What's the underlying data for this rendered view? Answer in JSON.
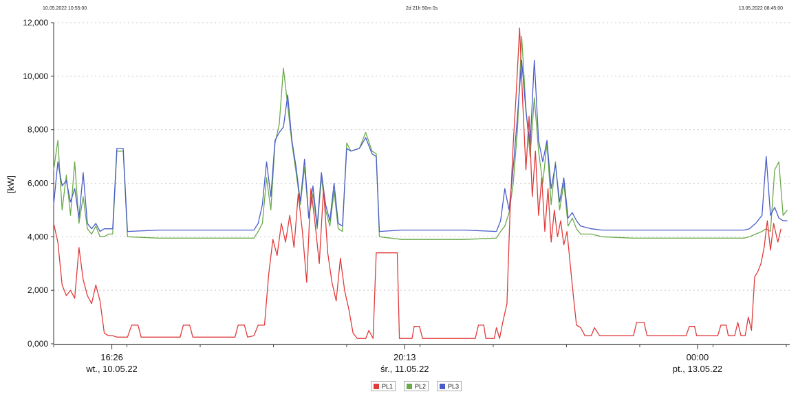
{
  "header": {
    "start_time": "10.05.2022 10:55:00",
    "duration": "2d 21h 50m 0s",
    "end_time": "13.05.2022 08:45:00"
  },
  "chart_data": {
    "type": "line",
    "ylabel": "[kW]",
    "ylim": [
      0,
      12000
    ],
    "y_ticks": [
      "0,000",
      "2,000",
      "4,000",
      "6,000",
      "8,000",
      "10,000",
      "12,000"
    ],
    "x_ticks": [
      {
        "time": "16:26",
        "date": "wt., 10.05.22"
      },
      {
        "time": "20:13",
        "date": "śr., 11.05.22"
      },
      {
        "time": "00:00",
        "date": "pt., 13.05.22"
      }
    ],
    "x_tick_hours": [
      5.52,
      33.3,
      61.08
    ],
    "xlim_hours": [
      0,
      69.83
    ],
    "grid": true,
    "legend_position": "bottom",
    "series": [
      {
        "name": "PL1",
        "color": "#e03a3a",
        "points": [
          [
            0,
            4500
          ],
          [
            0.4,
            3800
          ],
          [
            0.8,
            2200
          ],
          [
            1.2,
            1800
          ],
          [
            1.6,
            2000
          ],
          [
            2.0,
            1700
          ],
          [
            2.4,
            3600
          ],
          [
            2.8,
            2400
          ],
          [
            3.2,
            1800
          ],
          [
            3.6,
            1500
          ],
          [
            4.0,
            2200
          ],
          [
            4.4,
            1600
          ],
          [
            4.8,
            400
          ],
          [
            5.2,
            300
          ],
          [
            5.6,
            300
          ],
          [
            6.0,
            250
          ],
          [
            7.0,
            250
          ],
          [
            7.4,
            700
          ],
          [
            8.0,
            700
          ],
          [
            8.3,
            250
          ],
          [
            12.0,
            250
          ],
          [
            12.3,
            700
          ],
          [
            12.9,
            700
          ],
          [
            13.2,
            250
          ],
          [
            17.2,
            250
          ],
          [
            17.5,
            700
          ],
          [
            18.1,
            700
          ],
          [
            18.4,
            250
          ],
          [
            19.0,
            300
          ],
          [
            19.4,
            700
          ],
          [
            20.0,
            700
          ],
          [
            20.4,
            2600
          ],
          [
            20.8,
            3900
          ],
          [
            21.2,
            3300
          ],
          [
            21.6,
            4500
          ],
          [
            22.0,
            3800
          ],
          [
            22.4,
            4800
          ],
          [
            22.8,
            3600
          ],
          [
            23.2,
            5600
          ],
          [
            23.6,
            4200
          ],
          [
            24.0,
            2300
          ],
          [
            24.4,
            5800
          ],
          [
            24.8,
            4500
          ],
          [
            25.2,
            3000
          ],
          [
            25.6,
            5800
          ],
          [
            26.0,
            3400
          ],
          [
            26.4,
            2300
          ],
          [
            26.8,
            1600
          ],
          [
            27.2,
            3200
          ],
          [
            27.6,
            2000
          ],
          [
            28.0,
            1300
          ],
          [
            28.4,
            400
          ],
          [
            28.8,
            200
          ],
          [
            29.6,
            200
          ],
          [
            29.9,
            500
          ],
          [
            30.3,
            200
          ],
          [
            30.6,
            3400
          ],
          [
            32.6,
            3400
          ],
          [
            32.8,
            200
          ],
          [
            34.0,
            200
          ],
          [
            34.2,
            650
          ],
          [
            34.7,
            650
          ],
          [
            35.0,
            200
          ],
          [
            40.0,
            200
          ],
          [
            40.3,
            700
          ],
          [
            40.8,
            700
          ],
          [
            41.0,
            200
          ],
          [
            41.8,
            200
          ],
          [
            42.0,
            600
          ],
          [
            42.3,
            200
          ],
          [
            42.6,
            800
          ],
          [
            43.0,
            1500
          ],
          [
            43.3,
            5000
          ],
          [
            43.6,
            7500
          ],
          [
            43.9,
            9500
          ],
          [
            44.2,
            11800
          ],
          [
            44.5,
            9000
          ],
          [
            44.8,
            6500
          ],
          [
            45.1,
            8500
          ],
          [
            45.4,
            5500
          ],
          [
            45.7,
            7200
          ],
          [
            46.0,
            4800
          ],
          [
            46.3,
            6200
          ],
          [
            46.6,
            4200
          ],
          [
            46.9,
            5800
          ],
          [
            47.2,
            3800
          ],
          [
            47.5,
            5000
          ],
          [
            47.8,
            4000
          ],
          [
            48.1,
            4600
          ],
          [
            48.4,
            3700
          ],
          [
            48.7,
            4200
          ],
          [
            49.0,
            3000
          ],
          [
            49.3,
            1800
          ],
          [
            49.6,
            700
          ],
          [
            50.0,
            600
          ],
          [
            50.4,
            300
          ],
          [
            51.0,
            300
          ],
          [
            51.3,
            600
          ],
          [
            51.8,
            300
          ],
          [
            52.5,
            300
          ],
          [
            55.0,
            300
          ],
          [
            55.3,
            800
          ],
          [
            56.0,
            800
          ],
          [
            56.3,
            300
          ],
          [
            60.0,
            300
          ],
          [
            60.3,
            650
          ],
          [
            60.8,
            650
          ],
          [
            61.0,
            300
          ],
          [
            63.0,
            300
          ],
          [
            63.3,
            700
          ],
          [
            63.8,
            700
          ],
          [
            64.0,
            300
          ],
          [
            64.6,
            300
          ],
          [
            64.9,
            800
          ],
          [
            65.2,
            300
          ],
          [
            65.6,
            300
          ],
          [
            65.9,
            1000
          ],
          [
            66.2,
            500
          ],
          [
            66.5,
            2500
          ],
          [
            66.8,
            2700
          ],
          [
            67.1,
            3000
          ],
          [
            67.4,
            3600
          ],
          [
            67.7,
            4600
          ],
          [
            68.0,
            3500
          ],
          [
            68.3,
            4500
          ],
          [
            68.7,
            3800
          ],
          [
            69.0,
            4300
          ]
        ]
      },
      {
        "name": "PL2",
        "color": "#6aaa4a",
        "points": [
          [
            0,
            6500
          ],
          [
            0.4,
            7600
          ],
          [
            0.8,
            5000
          ],
          [
            1.2,
            6300
          ],
          [
            1.6,
            4800
          ],
          [
            2.0,
            6800
          ],
          [
            2.4,
            4500
          ],
          [
            2.8,
            5500
          ],
          [
            3.2,
            4300
          ],
          [
            3.6,
            4100
          ],
          [
            4.0,
            4400
          ],
          [
            4.4,
            4000
          ],
          [
            4.8,
            4000
          ],
          [
            5.2,
            4100
          ],
          [
            5.6,
            4100
          ],
          [
            6.0,
            7200
          ],
          [
            6.6,
            7200
          ],
          [
            7.0,
            4000
          ],
          [
            10.0,
            3950
          ],
          [
            13.0,
            3950
          ],
          [
            16.0,
            3950
          ],
          [
            19.0,
            3950
          ],
          [
            19.4,
            4200
          ],
          [
            19.8,
            4500
          ],
          [
            20.2,
            6200
          ],
          [
            20.6,
            5000
          ],
          [
            21.0,
            7500
          ],
          [
            21.4,
            8200
          ],
          [
            21.8,
            10300
          ],
          [
            22.2,
            8900
          ],
          [
            22.6,
            7500
          ],
          [
            23.0,
            6400
          ],
          [
            23.4,
            5200
          ],
          [
            23.8,
            6600
          ],
          [
            24.2,
            4700
          ],
          [
            24.6,
            5600
          ],
          [
            25.0,
            4300
          ],
          [
            25.4,
            6200
          ],
          [
            25.8,
            5000
          ],
          [
            26.2,
            4400
          ],
          [
            26.6,
            5700
          ],
          [
            27.0,
            4300
          ],
          [
            27.4,
            4200
          ],
          [
            27.8,
            7500
          ],
          [
            28.2,
            7200
          ],
          [
            29.0,
            7300
          ],
          [
            29.6,
            7900
          ],
          [
            30.2,
            7200
          ],
          [
            30.6,
            7100
          ],
          [
            30.9,
            4000
          ],
          [
            33.0,
            3900
          ],
          [
            36.0,
            3900
          ],
          [
            39.0,
            3900
          ],
          [
            42.0,
            3950
          ],
          [
            42.4,
            4200
          ],
          [
            42.8,
            4400
          ],
          [
            43.2,
            4900
          ],
          [
            43.6,
            6000
          ],
          [
            44.0,
            8000
          ],
          [
            44.4,
            11500
          ],
          [
            44.8,
            8800
          ],
          [
            45.2,
            7000
          ],
          [
            45.6,
            9200
          ],
          [
            46.0,
            7200
          ],
          [
            46.4,
            6000
          ],
          [
            46.8,
            7500
          ],
          [
            47.2,
            5200
          ],
          [
            47.6,
            6800
          ],
          [
            48.0,
            5000
          ],
          [
            48.4,
            6000
          ],
          [
            48.8,
            4400
          ],
          [
            49.2,
            4700
          ],
          [
            49.6,
            4300
          ],
          [
            50.0,
            4100
          ],
          [
            51.0,
            4100
          ],
          [
            52.0,
            4000
          ],
          [
            55.0,
            3950
          ],
          [
            58.0,
            3950
          ],
          [
            61.0,
            3950
          ],
          [
            64.0,
            3950
          ],
          [
            65.5,
            3950
          ],
          [
            66.0,
            4000
          ],
          [
            66.6,
            4100
          ],
          [
            67.2,
            4200
          ],
          [
            67.6,
            4300
          ],
          [
            68.0,
            4200
          ],
          [
            68.4,
            6500
          ],
          [
            68.8,
            6800
          ],
          [
            69.2,
            4800
          ],
          [
            69.6,
            5000
          ]
        ]
      },
      {
        "name": "PL3",
        "color": "#4a5cc8",
        "points": [
          [
            0,
            5200
          ],
          [
            0.4,
            6800
          ],
          [
            0.8,
            5900
          ],
          [
            1.2,
            6100
          ],
          [
            1.6,
            5300
          ],
          [
            2.0,
            5800
          ],
          [
            2.4,
            4700
          ],
          [
            2.8,
            6400
          ],
          [
            3.2,
            4500
          ],
          [
            3.6,
            4300
          ],
          [
            4.0,
            4500
          ],
          [
            4.4,
            4200
          ],
          [
            4.8,
            4300
          ],
          [
            5.2,
            4300
          ],
          [
            5.6,
            4300
          ],
          [
            6.0,
            7300
          ],
          [
            6.6,
            7300
          ],
          [
            7.0,
            4200
          ],
          [
            10.0,
            4250
          ],
          [
            13.0,
            4250
          ],
          [
            16.0,
            4250
          ],
          [
            19.0,
            4250
          ],
          [
            19.4,
            4500
          ],
          [
            19.8,
            5200
          ],
          [
            20.2,
            6800
          ],
          [
            20.6,
            5500
          ],
          [
            21.0,
            7600
          ],
          [
            21.4,
            7900
          ],
          [
            21.8,
            8100
          ],
          [
            22.2,
            9300
          ],
          [
            22.6,
            7600
          ],
          [
            23.0,
            6600
          ],
          [
            23.4,
            5300
          ],
          [
            23.8,
            6900
          ],
          [
            24.2,
            4700
          ],
          [
            24.6,
            5900
          ],
          [
            25.0,
            4400
          ],
          [
            25.4,
            6400
          ],
          [
            25.8,
            5200
          ],
          [
            26.2,
            4600
          ],
          [
            26.6,
            6000
          ],
          [
            27.0,
            4500
          ],
          [
            27.4,
            4400
          ],
          [
            27.8,
            7300
          ],
          [
            28.2,
            7200
          ],
          [
            29.0,
            7300
          ],
          [
            29.6,
            7700
          ],
          [
            30.2,
            7100
          ],
          [
            30.6,
            7000
          ],
          [
            30.9,
            4200
          ],
          [
            33.0,
            4250
          ],
          [
            36.0,
            4250
          ],
          [
            39.0,
            4250
          ],
          [
            42.0,
            4200
          ],
          [
            42.4,
            4600
          ],
          [
            42.8,
            5800
          ],
          [
            43.2,
            5000
          ],
          [
            43.6,
            6600
          ],
          [
            44.0,
            8500
          ],
          [
            44.4,
            10600
          ],
          [
            44.8,
            8700
          ],
          [
            45.2,
            7400
          ],
          [
            45.6,
            10600
          ],
          [
            46.0,
            7600
          ],
          [
            46.4,
            6800
          ],
          [
            46.8,
            7600
          ],
          [
            47.2,
            5800
          ],
          [
            47.6,
            6700
          ],
          [
            48.0,
            5300
          ],
          [
            48.4,
            6200
          ],
          [
            48.8,
            4700
          ],
          [
            49.2,
            4900
          ],
          [
            49.6,
            4600
          ],
          [
            50.0,
            4400
          ],
          [
            51.0,
            4300
          ],
          [
            52.0,
            4250
          ],
          [
            55.0,
            4250
          ],
          [
            58.0,
            4250
          ],
          [
            61.0,
            4250
          ],
          [
            64.0,
            4250
          ],
          [
            65.5,
            4250
          ],
          [
            66.0,
            4300
          ],
          [
            66.6,
            4500
          ],
          [
            67.2,
            4800
          ],
          [
            67.6,
            7000
          ],
          [
            68.0,
            4800
          ],
          [
            68.4,
            5100
          ],
          [
            68.8,
            4700
          ],
          [
            69.2,
            4600
          ],
          [
            69.6,
            4600
          ]
        ]
      }
    ]
  }
}
